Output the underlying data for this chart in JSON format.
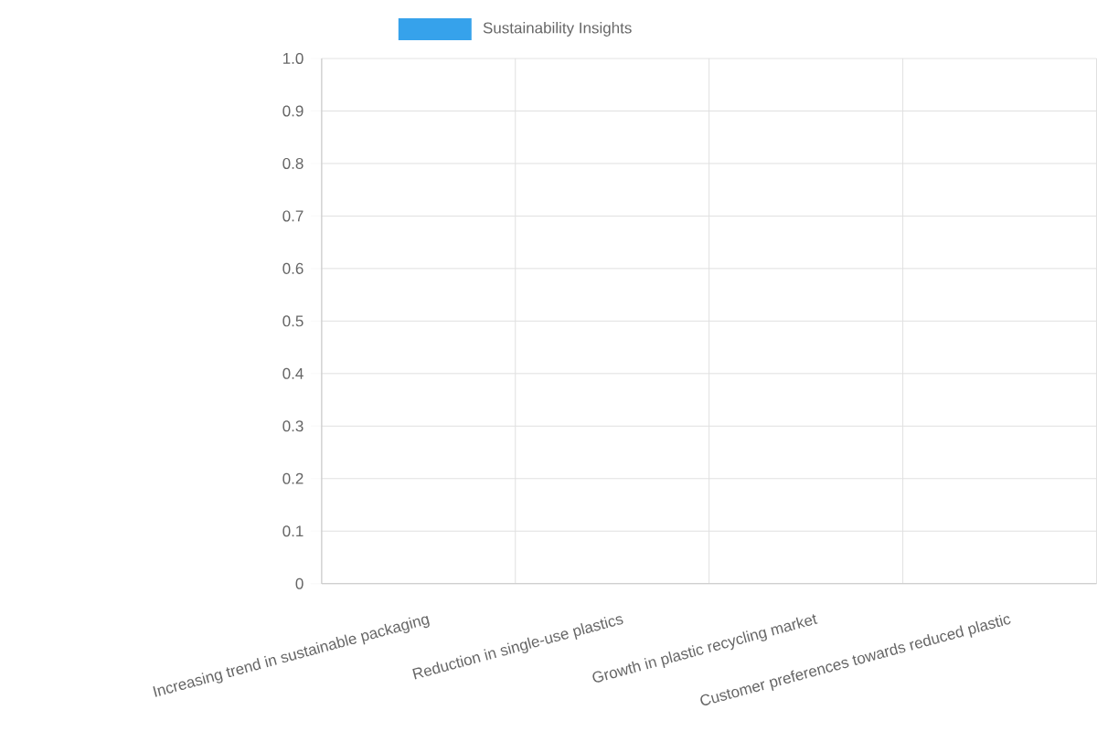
{
  "chart_data": {
    "type": "bar",
    "categories": [
      "Increasing trend in sustainable packaging",
      "Reduction in single-use plastics",
      "Growth in plastic recycling market",
      "Customer preferences towards reduced plastic"
    ],
    "series": [
      {
        "name": "Sustainability Insights",
        "color": "#36a2eb",
        "values": [
          null,
          null,
          null,
          null
        ]
      }
    ],
    "ylim": [
      0,
      1
    ],
    "yticks": [
      0,
      0.1,
      0.2,
      0.3,
      0.4,
      0.5,
      0.6,
      0.7,
      0.8,
      0.9,
      {
        "value": 1,
        "label": "1.0"
      }
    ],
    "grid": true,
    "legend": "top"
  }
}
